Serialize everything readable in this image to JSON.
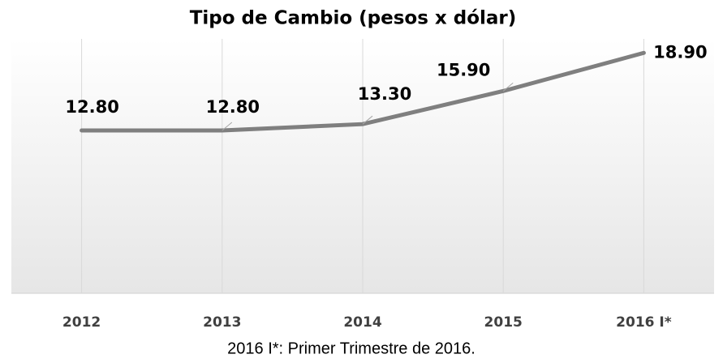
{
  "chart_data": {
    "type": "line",
    "title": "Tipo de Cambio (pesos x dólar)",
    "categories": [
      "2012",
      "2013",
      "2014",
      "2015",
      "2016 I*"
    ],
    "series": [
      {
        "name": "Tipo de Cambio",
        "color": "#7f7f7f",
        "values": [
          12.8,
          12.8,
          13.3,
          15.9,
          18.9
        ],
        "value_labels": [
          "12.80",
          "12.80",
          "13.30",
          "15.90",
          "18.90"
        ]
      }
    ],
    "ylim": [
      0,
      20
    ],
    "grid": true,
    "note": "2016 I*: Primer Trimestre de 2016."
  }
}
